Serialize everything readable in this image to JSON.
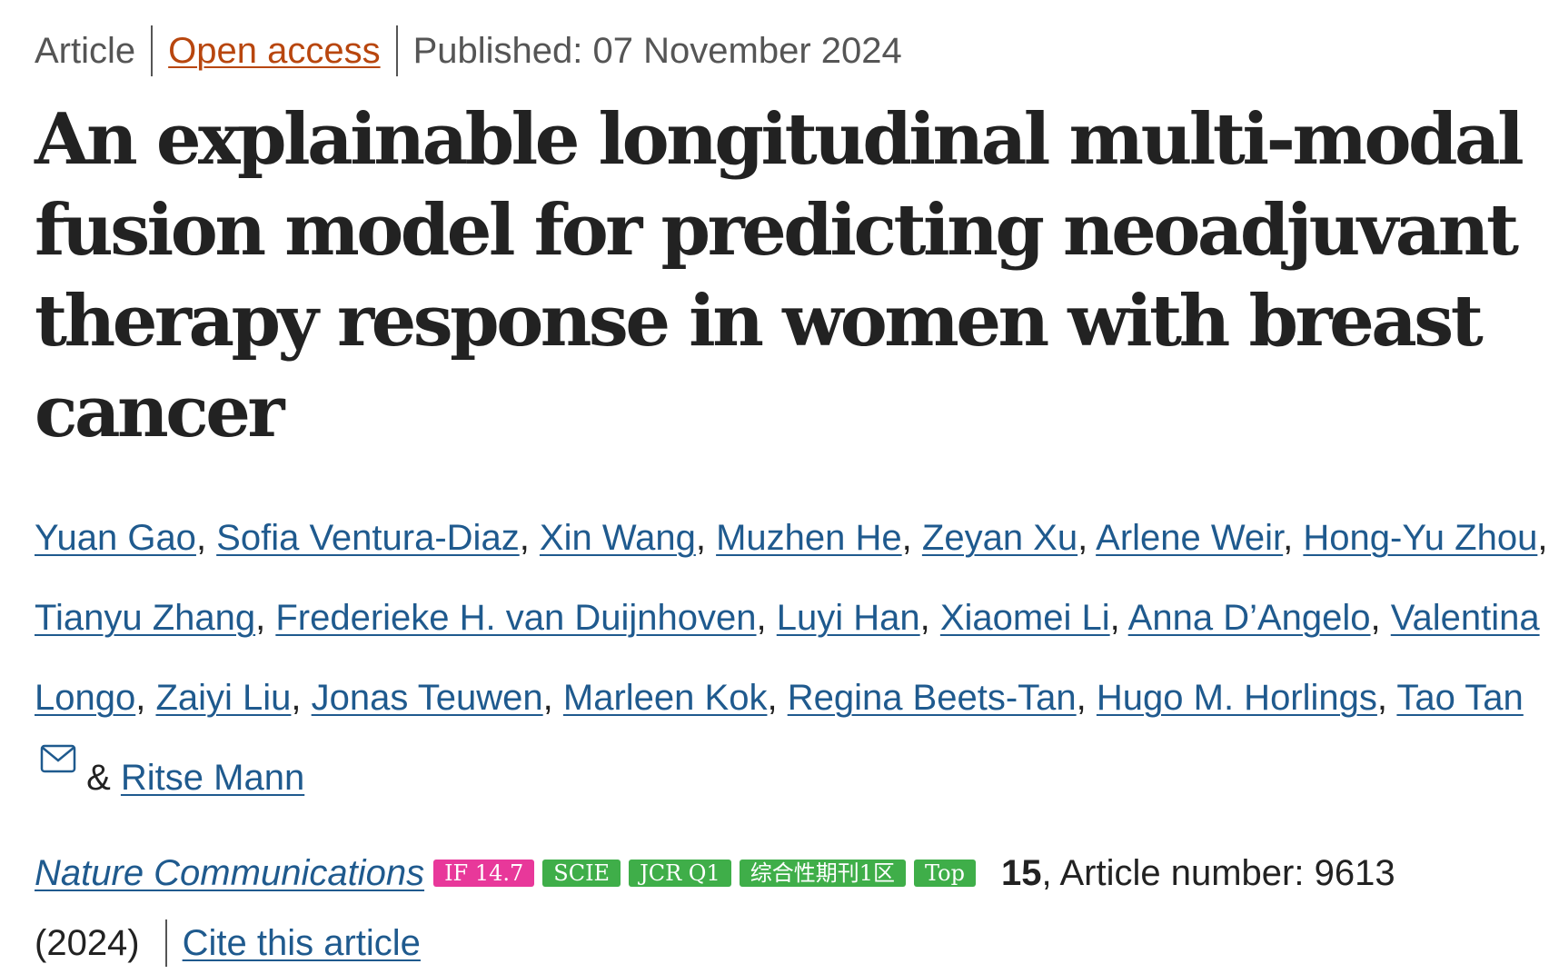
{
  "meta": {
    "type": "Article",
    "access": "Open access",
    "published": "Published: 07 November 2024"
  },
  "title": "An explainable longitudinal multi-modal fusion model for predicting neoadjuvant therapy response in women with breast cancer",
  "authors": [
    "Yuan Gao",
    "Sofia Ventura-Diaz",
    "Xin Wang",
    "Muzhen He",
    "Zeyan Xu",
    "Arlene Weir",
    "Hong-Yu Zhou",
    "Tianyu Zhang",
    "Frederieke H. van Duijnhoven",
    "Luyi Han",
    "Xiaomei Li",
    "Anna D’Angelo",
    "Valentina Longo",
    "Zaiyi Liu",
    "Jonas Teuwen",
    "Marleen Kok",
    "Regina Beets-Tan",
    "Hugo M. Horlings",
    "Tao Tan",
    "Ritse Mann"
  ],
  "separators": {
    "comma": ", ",
    "ampersand": " & "
  },
  "icons": {
    "corresponding_author": "mail-icon"
  },
  "journal": {
    "name": "Nature Communications",
    "badges": [
      {
        "label": "IF 14.7",
        "color": "#e8389a"
      },
      {
        "label": "SCIE",
        "color": "#3fae49"
      },
      {
        "label": "JCR Q1",
        "color": "#3fae49"
      },
      {
        "label": "综合性期刊1区",
        "color": "#3fae49"
      },
      {
        "label": "Top",
        "color": "#3fae49"
      }
    ],
    "volume": "15",
    "article_number": ", Article number: 9613",
    "year": "(2024)",
    "cite_label": "Cite this article"
  }
}
